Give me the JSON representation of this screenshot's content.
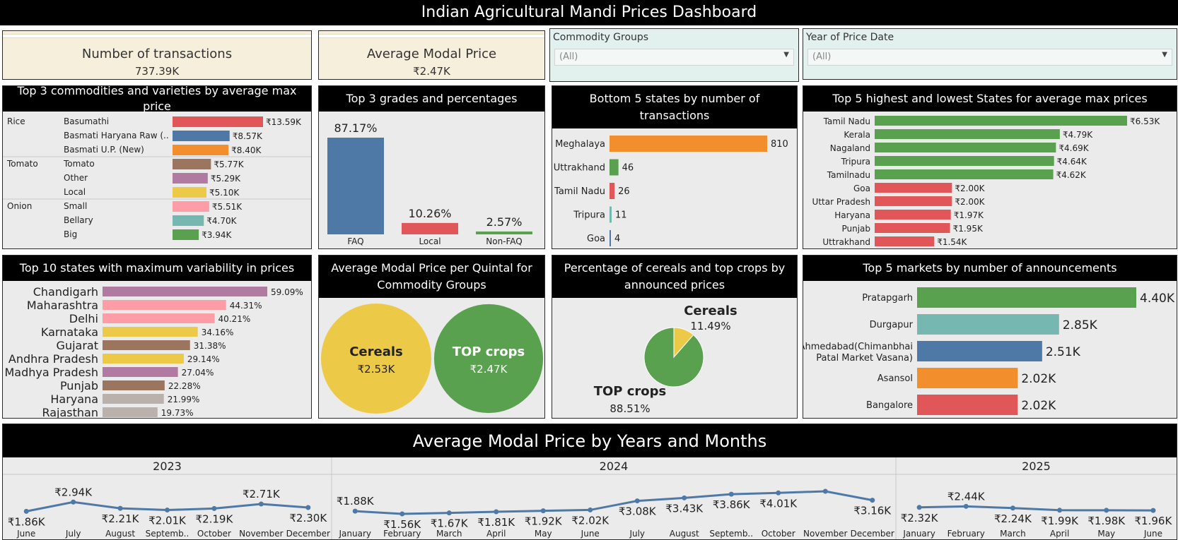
{
  "page_title": "Indian Agricultural Mandi Prices Dashboard",
  "kpis": [
    {
      "label": "Number of transactions",
      "value": "737.39K"
    },
    {
      "label": "Average Modal Price",
      "value": "₹2.47K"
    }
  ],
  "filters": [
    {
      "label": "Commodity Groups",
      "value": "(All)"
    },
    {
      "label": "Year of Price Date",
      "value": "(All)"
    }
  ],
  "colors": {
    "blue": "#4e79a7",
    "orange": "#f28e2b",
    "red": "#e15759",
    "teal": "#76b7b2",
    "green": "#59a14f",
    "yellow": "#edc948",
    "purple": "#b07aa1",
    "pink": "#ff9da7",
    "brown": "#9c755f",
    "grey": "#bab0ac"
  },
  "chart_data": [
    {
      "id": "commodities",
      "type": "bar",
      "title": "Top 3 commodities and varieties by average max price",
      "groups": [
        {
          "commodity": "Rice",
          "items": [
            {
              "variety": "Basumathi",
              "value": 13590,
              "label": "₹13.59K",
              "color": "#e15759"
            },
            {
              "variety": "Basmati Haryana Raw (..",
              "value": 8570,
              "label": "₹8.57K",
              "color": "#4e79a7"
            },
            {
              "variety": "Basmati U.P. (New)",
              "value": 8400,
              "label": "₹8.40K",
              "color": "#f28e2b"
            }
          ]
        },
        {
          "commodity": "Tomato",
          "items": [
            {
              "variety": "Tomato",
              "value": 5770,
              "label": "₹5.77K",
              "color": "#9c755f"
            },
            {
              "variety": "Other",
              "value": 5290,
              "label": "₹5.29K",
              "color": "#b07aa1"
            },
            {
              "variety": "Local",
              "value": 5100,
              "label": "₹5.10K",
              "color": "#edc948"
            }
          ]
        },
        {
          "commodity": "Onion",
          "items": [
            {
              "variety": "Small",
              "value": 5510,
              "label": "₹5.51K",
              "color": "#ff9da7"
            },
            {
              "variety": "Bellary",
              "value": 4700,
              "label": "₹4.70K",
              "color": "#76b7b2"
            },
            {
              "variety": "Big",
              "value": 3940,
              "label": "₹3.94K",
              "color": "#59a14f"
            }
          ]
        }
      ]
    },
    {
      "id": "grades",
      "type": "bar",
      "title": "Top 3 grades and percentages",
      "categories": [
        "FAQ",
        "Local",
        "Non-FAQ"
      ],
      "values": [
        87.17,
        10.26,
        2.57
      ],
      "labels": [
        "87.17%",
        "10.26%",
        "2.57%"
      ],
      "colors": [
        "#4e79a7",
        "#e15759",
        "#59a14f"
      ]
    },
    {
      "id": "bottom_states",
      "type": "bar",
      "title": "Bottom 5 states by number of transactions",
      "categories": [
        "Meghalaya",
        "Uttrakhand",
        "Tamil Nadu",
        "Tripura",
        "Goa"
      ],
      "values": [
        810,
        46,
        26,
        11,
        4
      ],
      "labels": [
        "810",
        "46",
        "26",
        "11",
        "4"
      ],
      "colors": [
        "#f28e2b",
        "#59a14f",
        "#e15759",
        "#76b7b2",
        "#4e79a7"
      ]
    },
    {
      "id": "hilo_states",
      "type": "bar",
      "title": "Top 5 highest and lowest States for average max prices",
      "categories": [
        "Tamil Nadu",
        "Kerala",
        "Nagaland",
        "Tripura",
        "Tamilnadu",
        "Goa",
        "Uttar Pradesh",
        "Haryana",
        "Punjab",
        "Uttrakhand"
      ],
      "values": [
        6530,
        4790,
        4690,
        4640,
        4620,
        2000,
        2000,
        1970,
        1950,
        1540
      ],
      "labels": [
        "₹6.53K",
        "₹4.79K",
        "₹4.69K",
        "₹4.64K",
        "₹4.62K",
        "₹2.00K",
        "₹2.00K",
        "₹1.97K",
        "₹1.95K",
        "₹1.54K"
      ],
      "colors": [
        "#59a14f",
        "#59a14f",
        "#59a14f",
        "#59a14f",
        "#59a14f",
        "#e15759",
        "#e15759",
        "#e15759",
        "#e15759",
        "#e15759"
      ]
    },
    {
      "id": "variability",
      "type": "bar",
      "title": "Top 10 states with maximum variability in prices",
      "categories": [
        "Chandigarh",
        "Maharashtra",
        "Delhi",
        "Karnataka",
        "Gujarat",
        "Andhra Pradesh",
        "Madhya Pradesh",
        "Punjab",
        "Haryana",
        "Rajasthan"
      ],
      "values": [
        59.09,
        44.31,
        40.21,
        34.16,
        31.38,
        29.14,
        27.04,
        22.28,
        21.99,
        19.73
      ],
      "labels": [
        "59.09%",
        "44.31%",
        "40.21%",
        "34.16%",
        "31.38%",
        "29.14%",
        "27.04%",
        "22.28%",
        "21.99%",
        "19.73%"
      ],
      "colors": [
        "#b07aa1",
        "#ff9da7",
        "#ff9da7",
        "#edc948",
        "#9c755f",
        "#edc948",
        "#b07aa1",
        "#9c755f",
        "#bab0ac",
        "#bab0ac"
      ]
    },
    {
      "id": "bubbles",
      "type": "bubble",
      "title": "Average Modal Price per Quintal for Commodity Groups",
      "categories": [
        "Cereals",
        "TOP crops"
      ],
      "values": [
        2530,
        2470
      ],
      "labels": [
        "₹2.53K",
        "₹2.47K"
      ],
      "colors": [
        "#edc948",
        "#59a14f"
      ]
    },
    {
      "id": "pie",
      "type": "pie",
      "title": "Percentage of cereals and top crops by announced prices",
      "categories": [
        "Cereals",
        "TOP crops"
      ],
      "values": [
        11.49,
        88.51
      ],
      "labels": [
        "11.49%",
        "88.51%"
      ],
      "colors": [
        "#edc948",
        "#59a14f"
      ]
    },
    {
      "id": "markets",
      "type": "bar",
      "title": "Top 5 markets by number of announcements",
      "categories": [
        "Pratapgarh",
        "Durgapur",
        "Ahmedabad(Chimanbhai Patal Market Vasana)",
        "Asansol",
        "Bangalore"
      ],
      "values": [
        4400,
        2850,
        2510,
        2020,
        2020
      ],
      "labels": [
        "4.40K",
        "2.85K",
        "2.51K",
        "2.02K",
        "2.02K"
      ],
      "colors": [
        "#59a14f",
        "#76b7b2",
        "#4e79a7",
        "#f28e2b",
        "#e15759"
      ]
    },
    {
      "id": "timeline",
      "type": "line",
      "title": "Average Modal Price by Years and Months",
      "years": [
        {
          "year": "2023",
          "months": [
            "June",
            "July",
            "August",
            "Septemb..",
            "October",
            "November",
            "December"
          ],
          "values": [
            1860,
            2940,
            2210,
            2010,
            2190,
            2710,
            2300
          ],
          "labels": [
            "₹1.86K",
            "₹2.94K",
            "₹2.21K",
            "₹2.01K",
            "₹2.19K",
            "₹2.71K",
            "₹2.30K"
          ]
        },
        {
          "year": "2024",
          "months": [
            "January",
            "February",
            "March",
            "April",
            "May",
            "June",
            "July",
            "August",
            "Septemb..",
            "October",
            "November",
            "December"
          ],
          "values": [
            1880,
            1560,
            1670,
            1810,
            1920,
            2020,
            3080,
            3430,
            3860,
            4010,
            4200,
            3160
          ],
          "labels": [
            "₹1.88K",
            "₹1.56K",
            "₹1.67K",
            "₹1.81K",
            "₹1.92K",
            "₹2.02K",
            "₹3.08K",
            "₹3.43K",
            "₹3.86K",
            "₹4.01K",
            "",
            "₹3.16K"
          ]
        },
        {
          "year": "2025",
          "months": [
            "January",
            "February",
            "March",
            "April",
            "May",
            "June"
          ],
          "values": [
            2320,
            2440,
            2240,
            1990,
            1980,
            1960
          ],
          "labels": [
            "₹2.32K",
            "₹2.44K",
            "₹2.24K",
            "₹1.99K",
            "₹1.98K",
            "₹1.96K"
          ]
        }
      ]
    }
  ]
}
